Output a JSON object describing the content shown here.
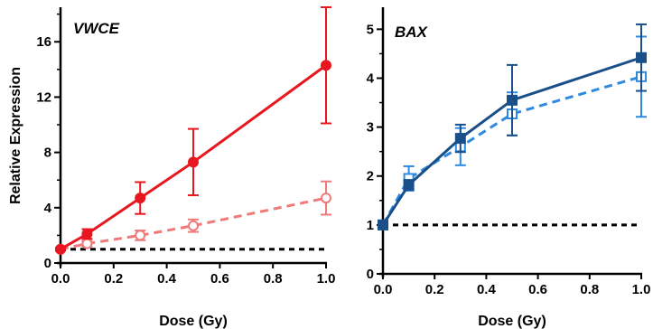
{
  "chart_data": [
    {
      "type": "line",
      "title": "VWCE",
      "xlabel": "Dose (Gy)",
      "ylabel": "Relative Expression",
      "xlim": [
        0,
        1.0
      ],
      "ylim": [
        0,
        18.5
      ],
      "xticks": [
        "0.0",
        "0.2",
        "0.4",
        "0.6",
        "0.8",
        "1.0"
      ],
      "yticks": [
        "0",
        "4",
        "8",
        "12",
        "16"
      ],
      "baseline": 1,
      "series": [
        {
          "style": "solid-filled-circle",
          "color": "#e8171f",
          "x": [
            0,
            0.1,
            0.3,
            0.5,
            1.0
          ],
          "y": [
            1.0,
            2.1,
            4.7,
            7.3,
            14.3
          ],
          "err": [
            0.1,
            0.35,
            1.15,
            2.4,
            4.2
          ]
        },
        {
          "style": "dashed-open-circle",
          "color": "#f07a7a",
          "x": [
            0,
            0.1,
            0.3,
            0.5,
            1.0
          ],
          "y": [
            1.0,
            1.4,
            2.0,
            2.7,
            4.7
          ],
          "err": [
            0.1,
            0.2,
            0.35,
            0.45,
            1.2
          ]
        }
      ]
    },
    {
      "type": "line",
      "title": "BAX",
      "xlabel": "Dose (Gy)",
      "ylabel": "",
      "xlim": [
        0,
        1.0
      ],
      "ylim": [
        0,
        5.45
      ],
      "xticks": [
        "0.0",
        "0.2",
        "0.4",
        "0.6",
        "0.8",
        "1.0"
      ],
      "yticks": [
        "0",
        "1",
        "2",
        "3",
        "4",
        "5"
      ],
      "baseline": 1,
      "series": [
        {
          "style": "solid-filled-square",
          "color": "#1a4f8a",
          "x": [
            0,
            0.1,
            0.3,
            0.5,
            1.0
          ],
          "y": [
            1.0,
            1.82,
            2.77,
            3.55,
            4.42
          ],
          "err": [
            0.03,
            0.1,
            0.28,
            0.72,
            0.68
          ]
        },
        {
          "style": "dashed-open-square",
          "color": "#2d8ae0",
          "x": [
            0,
            0.1,
            0.3,
            0.5,
            1.0
          ],
          "y": [
            1.0,
            1.95,
            2.6,
            3.27,
            4.03
          ],
          "err": [
            0.03,
            0.25,
            0.38,
            0.44,
            0.82
          ]
        }
      ]
    }
  ]
}
